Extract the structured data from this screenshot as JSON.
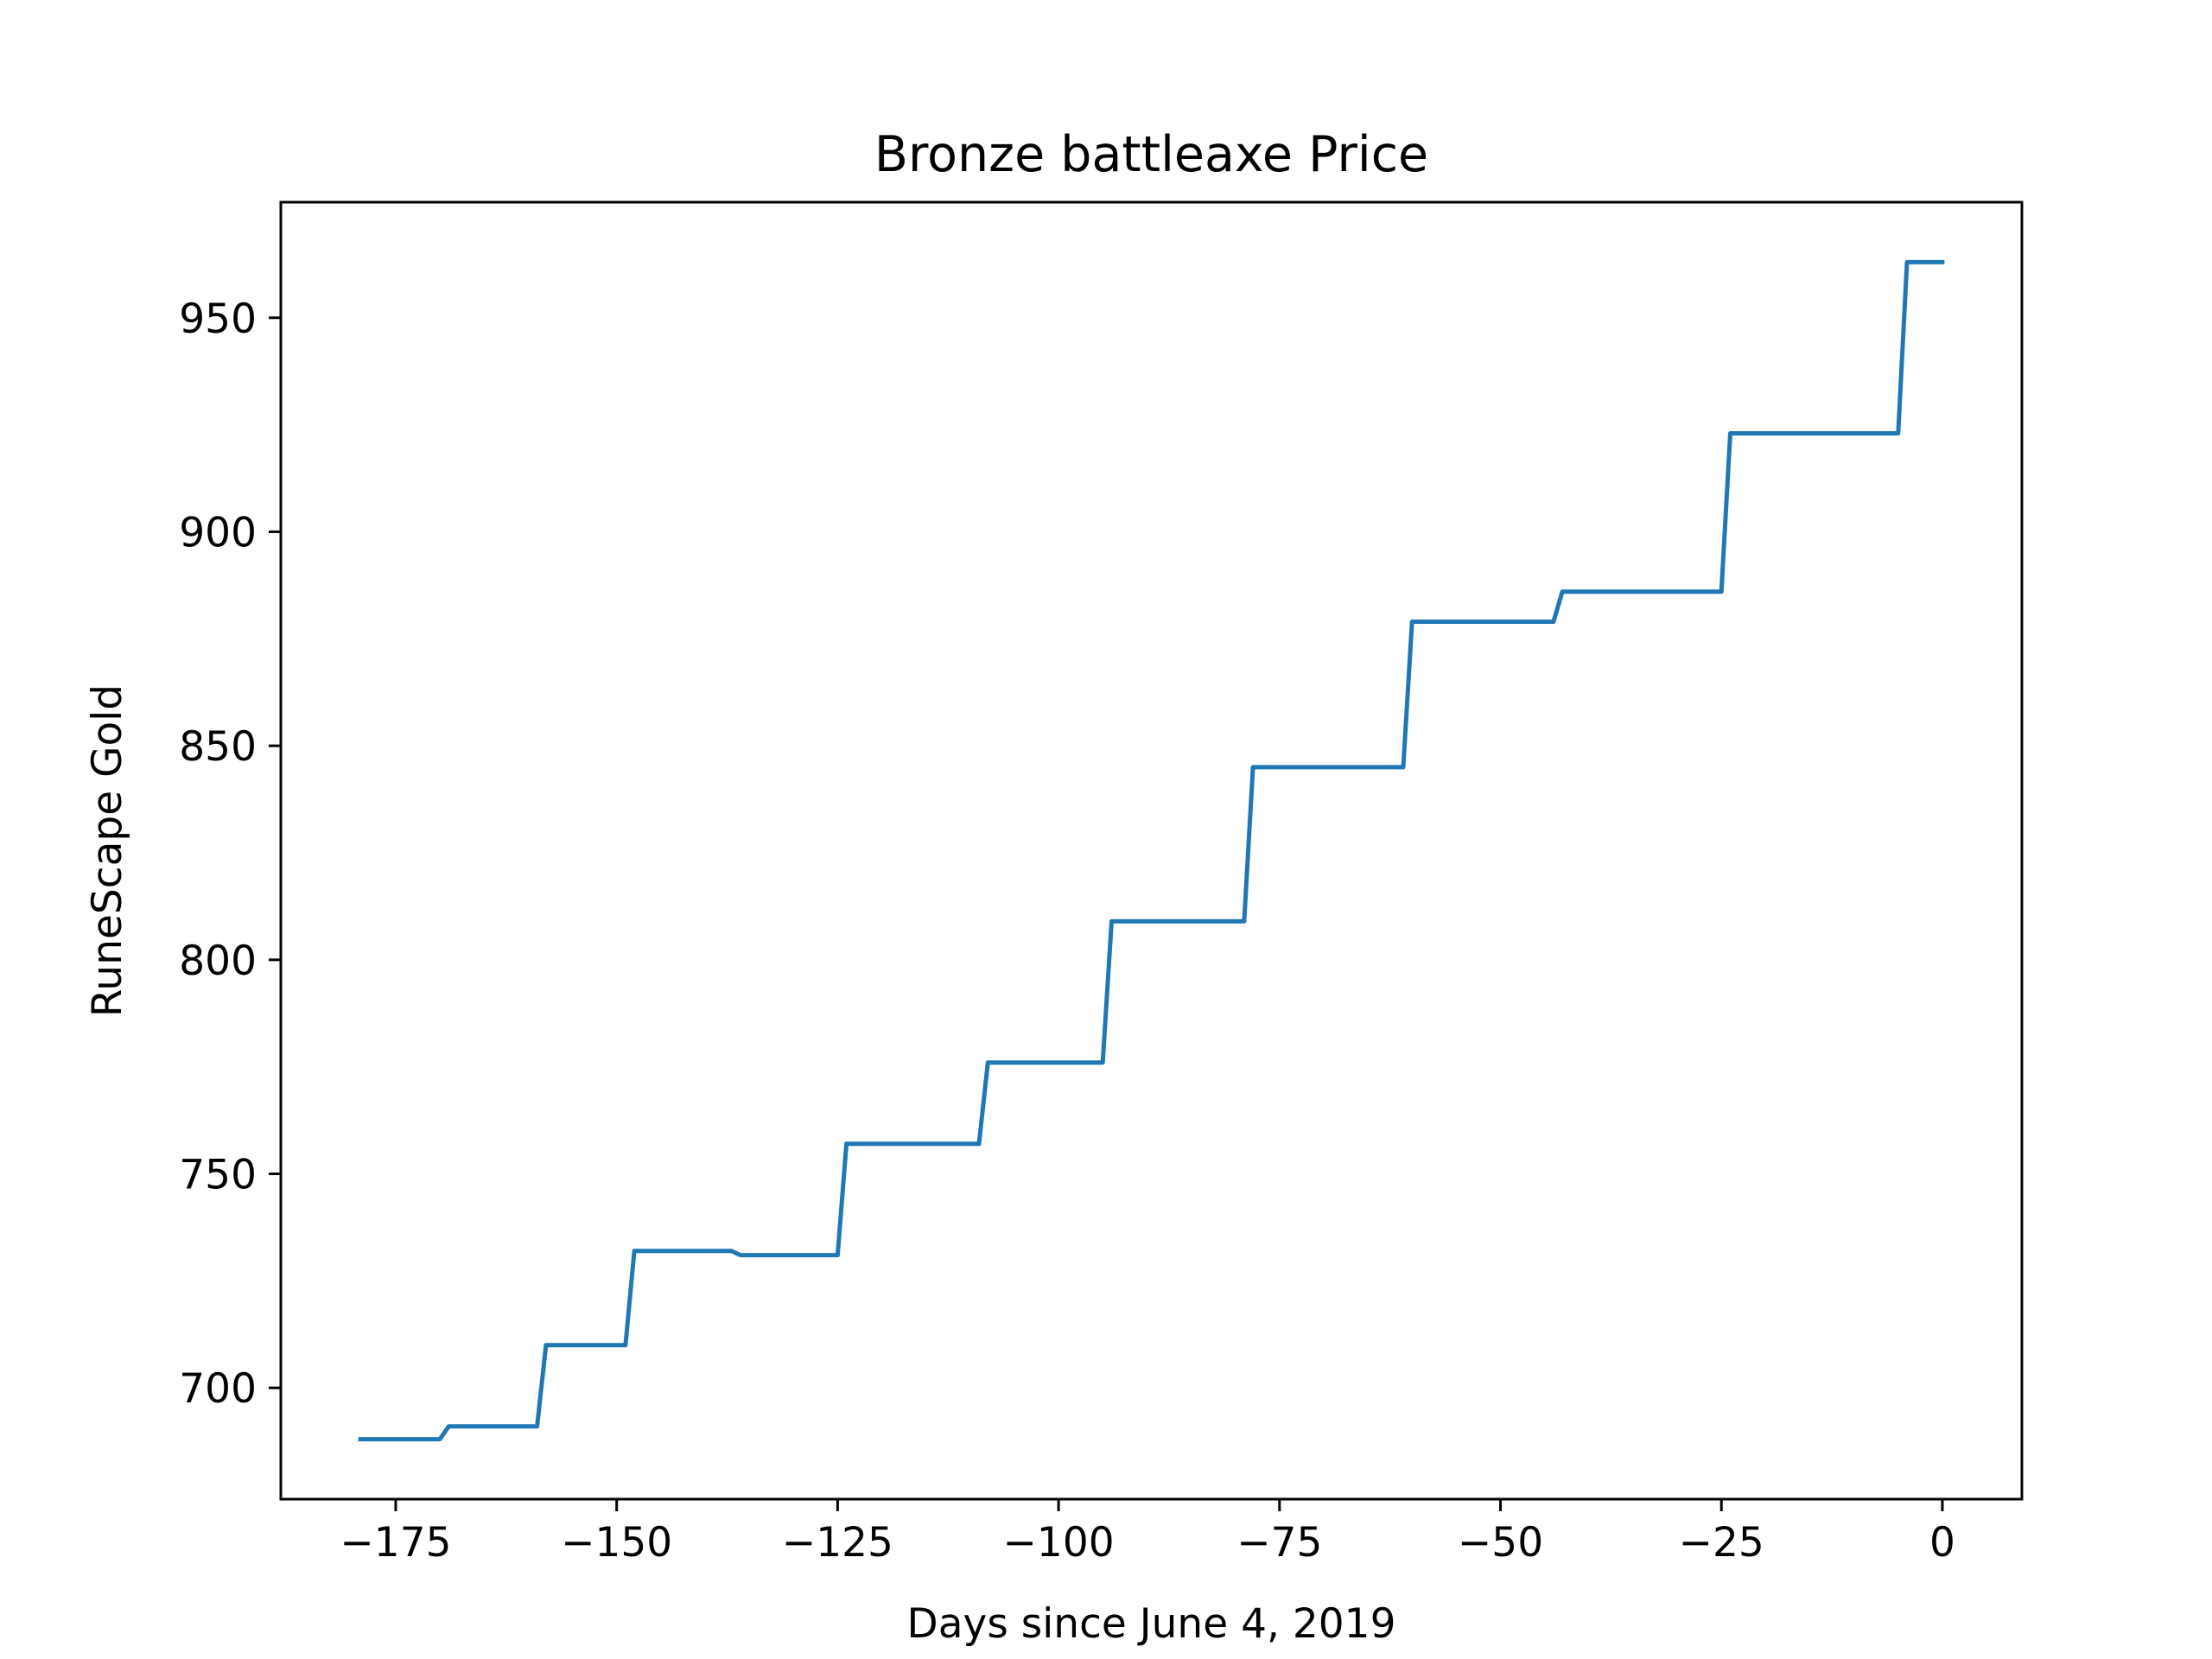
{
  "chart_data": {
    "type": "line",
    "title": "Bronze battleaxe Price",
    "xlabel": "Days since June 4, 2019",
    "ylabel": "RuneScape Gold",
    "xlim": [
      -188,
      9
    ],
    "ylim": [
      674,
      977
    ],
    "x_ticks": [
      -175,
      -150,
      -125,
      -100,
      -75,
      -50,
      -25,
      0
    ],
    "x_tick_labels": [
      "−175",
      "−150",
      "−125",
      "−100",
      "−75",
      "−50",
      "−25",
      "0"
    ],
    "y_ticks": [
      700,
      750,
      800,
      850,
      900,
      950
    ],
    "y_tick_labels": [
      "700",
      "750",
      "800",
      "850",
      "900",
      "950"
    ],
    "grid": false,
    "series": [
      {
        "color": "#1f77b4",
        "x": [
          -179,
          -170,
          -169,
          -159,
          -158,
          -149,
          -148,
          -137,
          -136,
          -125,
          -124,
          -109,
          -108,
          -95,
          -94,
          -79,
          -78,
          -61,
          -60,
          -44,
          -43,
          -25,
          -24,
          -5,
          -4,
          0
        ],
        "y": [
          688,
          688,
          691,
          691,
          710,
          710,
          732,
          732,
          731,
          731,
          757,
          757,
          776,
          776,
          809,
          809,
          845,
          845,
          879,
          879,
          886,
          886,
          923,
          923,
          963,
          963
        ]
      }
    ]
  }
}
